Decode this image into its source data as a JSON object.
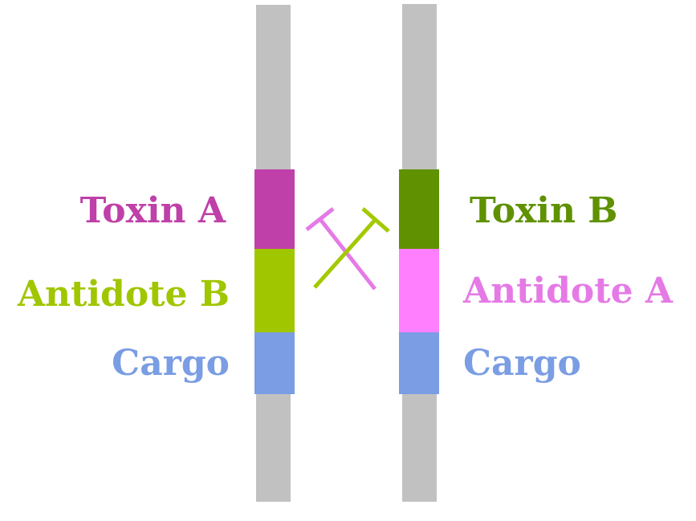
{
  "colors": {
    "rod": "#c1c1c1",
    "toxin_a": "#bf40a8",
    "antidote_b": "#a0c600",
    "toxin_b": "#5f9100",
    "antidote_a": "#ff7fff",
    "cargo": "#7a9de3",
    "inhibition_a": "#e57ae6",
    "inhibition_b": "#a3c900",
    "background": "#ffffff"
  },
  "left_chromosome": {
    "toxin_label": "Toxin A",
    "antidote_label": "Antidote B",
    "cargo_label": "Cargo"
  },
  "right_chromosome": {
    "toxin_label": "Toxin B",
    "antidote_label": "Antidote A",
    "cargo_label": "Cargo"
  }
}
